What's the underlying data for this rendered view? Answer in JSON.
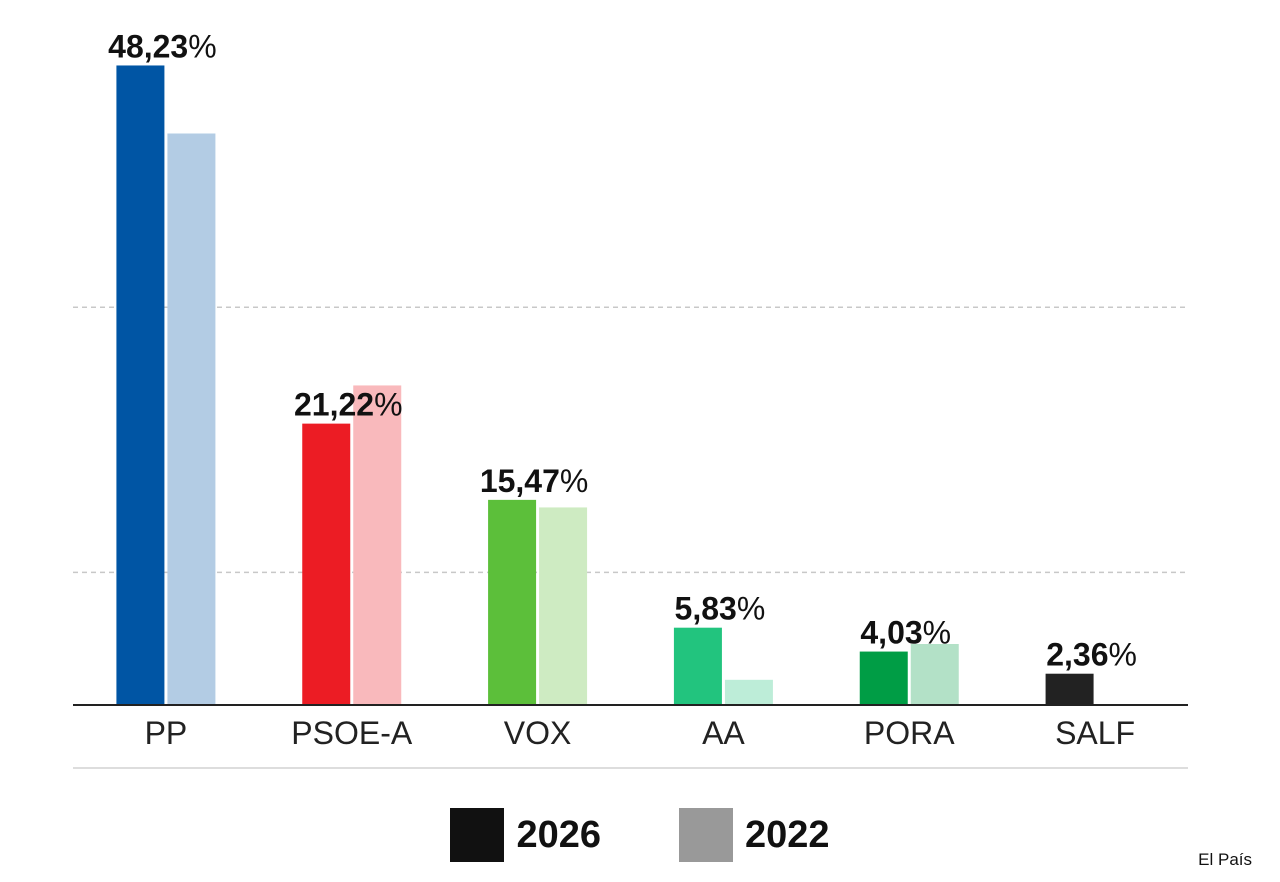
{
  "chart_data": {
    "type": "bar",
    "categories": [
      "PP",
      "PSOE-A",
      "VOX",
      "AA",
      "PORA",
      "SALF"
    ],
    "series": [
      {
        "name": "2026",
        "values": [
          48.23,
          21.22,
          15.47,
          5.83,
          4.03,
          2.36
        ],
        "labels": [
          "48,23%",
          "21,22%",
          "15,47%",
          "5,83%",
          "4,03%",
          "2,36%"
        ],
        "colors": [
          "#0055a4",
          "#ec1c24",
          "#5cbf3a",
          "#22c47e",
          "#009d45",
          "#222222"
        ]
      },
      {
        "name": "2022",
        "values": [
          43.1,
          24.1,
          14.9,
          1.9,
          4.6,
          null
        ],
        "colors": [
          "#b3cce4",
          "#f9b9bc",
          "#ceebc2",
          "#bdedd8",
          "#b3e1c7",
          "#cccccc"
        ]
      }
    ],
    "ylim": [
      0,
      50
    ],
    "grid": true,
    "legend_position": "bottom",
    "legend_colors": [
      "#111111",
      "#999999"
    ]
  },
  "source": "El País"
}
